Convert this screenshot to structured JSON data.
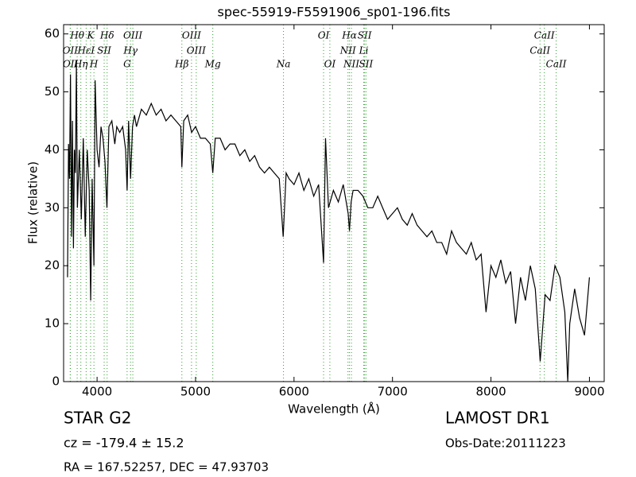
{
  "chart_data": {
    "type": "line",
    "title": "spec-55919-F5591906_sp01-196.fits",
    "x_label": "Wavelength (Å)",
    "y_label": "Flux (relative)",
    "xlim": [
      3660,
      9150
    ],
    "ylim": [
      0,
      61.6
    ],
    "xticks": [
      4000,
      5000,
      6000,
      7000,
      8000,
      9000
    ],
    "yticks": [
      0,
      10,
      20,
      30,
      40,
      50,
      60
    ],
    "grid": false,
    "line_color": "#000000",
    "marker_color": "#2ca02c",
    "x": [
      3700,
      3710,
      3720,
      3730,
      3740,
      3750,
      3760,
      3770,
      3780,
      3790,
      3800,
      3820,
      3840,
      3860,
      3880,
      3900,
      3920,
      3935,
      3950,
      3968,
      3980,
      4000,
      4020,
      4040,
      4060,
      4080,
      4100,
      4120,
      4150,
      4180,
      4200,
      4230,
      4260,
      4290,
      4305,
      4320,
      4340,
      4360,
      4380,
      4400,
      4450,
      4500,
      4550,
      4600,
      4650,
      4700,
      4750,
      4800,
      4850,
      4861,
      4880,
      4920,
      4960,
      5000,
      5050,
      5100,
      5150,
      5175,
      5200,
      5250,
      5300,
      5350,
      5400,
      5450,
      5500,
      5550,
      5600,
      5650,
      5700,
      5750,
      5800,
      5850,
      5890,
      5920,
      5950,
      6000,
      6050,
      6100,
      6150,
      6200,
      6250,
      6300,
      6320,
      6350,
      6400,
      6450,
      6500,
      6550,
      6563,
      6580,
      6600,
      6650,
      6700,
      6750,
      6800,
      6850,
      6900,
      6950,
      7000,
      7050,
      7100,
      7150,
      7200,
      7250,
      7300,
      7350,
      7400,
      7450,
      7500,
      7550,
      7600,
      7650,
      7700,
      7750,
      7800,
      7850,
      7900,
      7950,
      8000,
      8050,
      8100,
      8150,
      8200,
      8250,
      8300,
      8350,
      8400,
      8450,
      8500,
      8550,
      8600,
      8650,
      8700,
      8750,
      8780,
      8800,
      8850,
      8900,
      8950,
      9000
    ],
    "y": [
      18,
      41,
      35,
      53,
      25,
      45,
      23,
      40,
      36,
      55,
      30,
      40,
      28,
      42,
      25,
      40,
      33,
      14,
      35,
      20,
      52,
      40,
      37,
      44,
      42,
      38,
      30,
      44,
      45,
      41,
      44,
      43,
      44,
      40,
      33,
      45,
      35,
      44,
      46,
      44,
      47,
      46,
      48,
      46,
      47,
      45,
      46,
      45,
      44,
      37,
      45,
      46,
      43,
      44,
      42,
      42,
      41,
      36,
      42,
      42,
      40,
      41,
      41,
      39,
      40,
      38,
      39,
      37,
      36,
      37,
      36,
      35,
      25,
      36,
      35,
      34,
      36,
      33,
      35,
      32,
      34,
      20.5,
      42,
      30,
      33,
      31,
      34,
      29,
      26,
      31,
      33,
      33,
      32,
      30,
      30,
      32,
      30,
      28,
      29,
      30,
      28,
      27,
      29,
      27,
      26,
      25,
      26,
      24,
      24,
      22,
      26,
      24,
      23,
      22,
      24,
      21,
      22,
      12,
      20,
      18,
      21,
      17,
      19,
      10,
      18,
      14,
      20,
      16,
      3.5,
      15,
      14,
      20,
      18,
      12,
      0,
      10,
      16,
      11,
      8,
      18
    ],
    "line_labels": [
      [
        {
          "label": "Hθ",
          "wavelength": 3798
        },
        {
          "label": "K",
          "wavelength": 3934
        },
        {
          "label": "Hδ",
          "wavelength": 4102
        },
        {
          "label": "OIII",
          "wavelength": 4363
        },
        {
          "label": "OIII",
          "wavelength": 4959
        },
        {
          "label": "OI",
          "wavelength": 6300
        },
        {
          "label": "Hα",
          "wavelength": 6563
        },
        {
          "label": "SII",
          "wavelength": 6717
        },
        {
          "label": "CaII",
          "wavelength": 8542
        }
      ],
      [
        {
          "label": "OII",
          "wavelength": 3727
        },
        {
          "label": "HεI",
          "wavelength": 3889
        },
        {
          "label": "SII",
          "wavelength": 4072
        },
        {
          "label": "Hγ",
          "wavelength": 4340
        },
        {
          "label": "OIII",
          "wavelength": 5007
        },
        {
          "label": "NII",
          "wavelength": 6548
        },
        {
          "label": "Li",
          "wavelength": 6708
        },
        {
          "label": "CaII",
          "wavelength": 8498
        }
      ],
      [
        {
          "label": "OII",
          "wavelength": 3729
        },
        {
          "label": "Hη",
          "wavelength": 3835
        },
        {
          "label": "H",
          "wavelength": 3968
        },
        {
          "label": "G",
          "wavelength": 4305
        },
        {
          "label": "Hβ",
          "wavelength": 4861
        },
        {
          "label": "Mg",
          "wavelength": 5175
        },
        {
          "label": "Na",
          "wavelength": 5893
        },
        {
          "label": "OI",
          "wavelength": 6364
        },
        {
          "label": "NII",
          "wavelength": 6583
        },
        {
          "label": "SII",
          "wavelength": 6731
        },
        {
          "label": "CaII",
          "wavelength": 8662
        }
      ]
    ]
  },
  "footer": {
    "object": "STAR   G2",
    "redshift": "cz = -179.4  ± 15.2",
    "coords": "RA = 167.52257, DEC = 47.93703",
    "survey": "LAMOST DR1",
    "date": "Obs-Date:20111223"
  }
}
